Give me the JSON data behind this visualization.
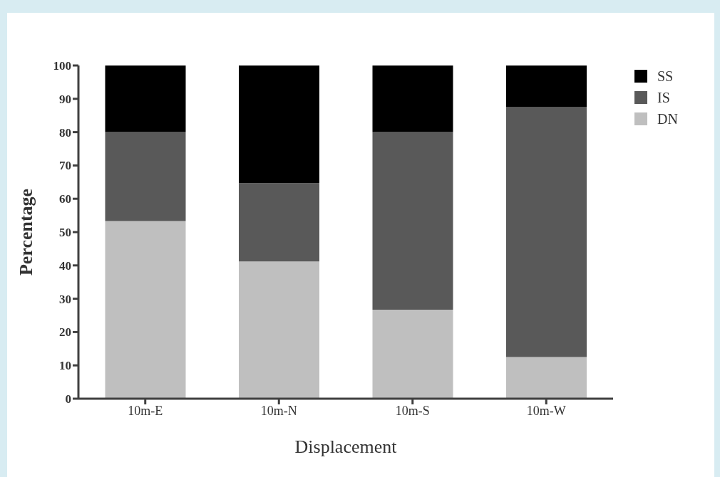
{
  "chart_data": {
    "type": "bar",
    "stacked": true,
    "xlabel": "Displacement",
    "ylabel": "Percentage",
    "categories": [
      "10m-E",
      "10m-N",
      "10m-S",
      "10m-W"
    ],
    "series": [
      {
        "name": "DN",
        "color": "#bfbfbf",
        "values": [
          53.3,
          41.2,
          26.7,
          12.5
        ]
      },
      {
        "name": "IS",
        "color": "#595959",
        "values": [
          26.7,
          23.5,
          53.3,
          75
        ]
      },
      {
        "name": "SS",
        "color": "#000000",
        "values": [
          20,
          35.3,
          20,
          12.5
        ]
      }
    ],
    "ylim": [
      0,
      100
    ],
    "yticks": [
      0,
      10,
      20,
      30,
      40,
      50,
      60,
      70,
      80,
      90,
      100
    ],
    "grid": false,
    "legend": "top right"
  }
}
